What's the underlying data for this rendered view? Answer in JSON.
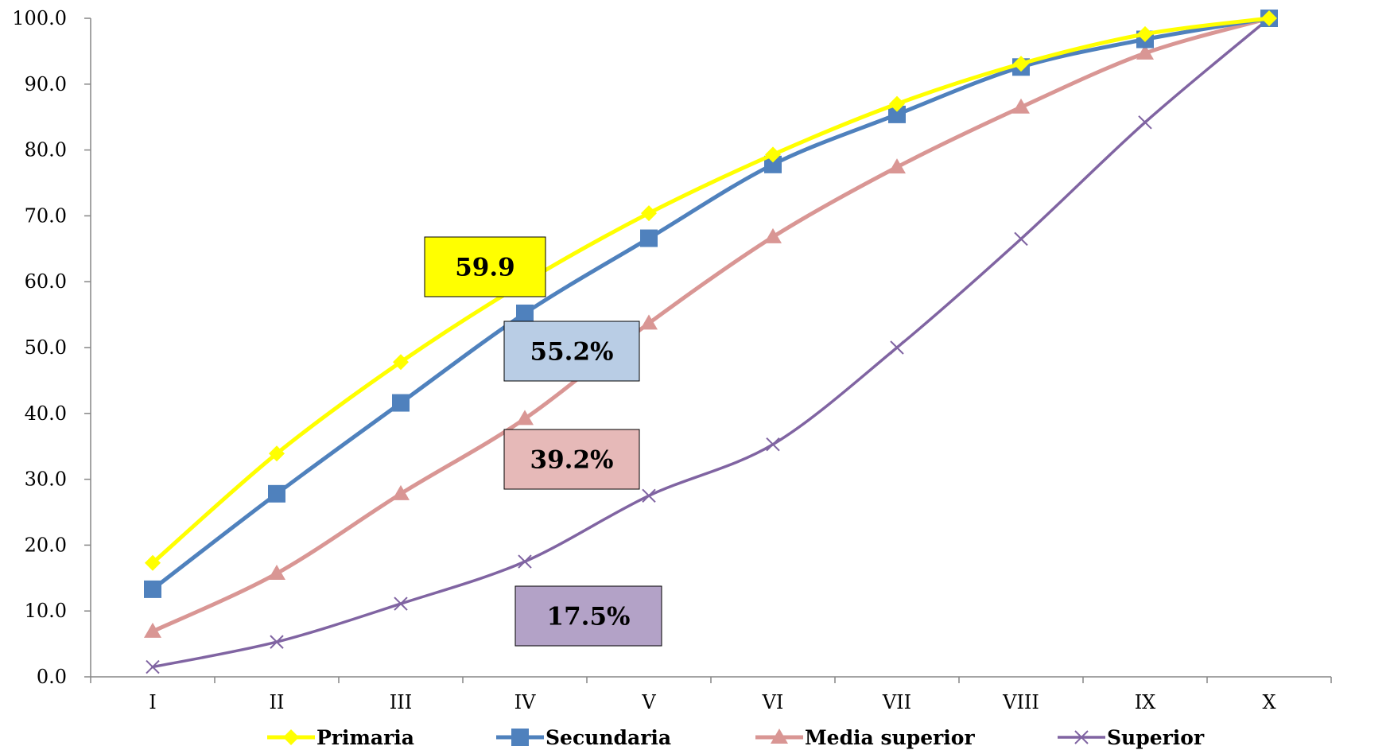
{
  "chart_data": {
    "type": "line",
    "categories": [
      "I",
      "II",
      "III",
      "IV",
      "V",
      "VI",
      "VII",
      "VIII",
      "IX",
      "X"
    ],
    "ylim": [
      0,
      100
    ],
    "yticks": [
      "0.0",
      "10.0",
      "20.0",
      "30.0",
      "40.0",
      "50.0",
      "60.0",
      "70.0",
      "80.0",
      "90.0",
      "100.0"
    ],
    "grid": false,
    "legend_position": "bottom",
    "series": [
      {
        "name": "Primaria",
        "color": "#FFFF00",
        "marker": "diamond",
        "values": [
          17.3,
          33.9,
          47.8,
          59.9,
          70.4,
          79.3,
          87.0,
          93.1,
          97.6,
          100.0
        ]
      },
      {
        "name": "Secundaria",
        "color": "#4F81BD",
        "marker": "square",
        "values": [
          13.3,
          27.8,
          41.6,
          55.2,
          66.6,
          77.8,
          85.4,
          92.6,
          96.8,
          100.0
        ]
      },
      {
        "name": "Media superior",
        "color": "#D99694",
        "marker": "triangle",
        "values": [
          6.9,
          15.7,
          27.8,
          39.2,
          53.7,
          66.8,
          77.4,
          86.5,
          94.7,
          100.0
        ]
      },
      {
        "name": "Superior",
        "color": "#8064A2",
        "marker": "x",
        "values": [
          1.5,
          5.3,
          11.1,
          17.5,
          27.5,
          35.3,
          50.0,
          66.5,
          84.2,
          100.0
        ]
      }
    ],
    "annotations": [
      {
        "text": "59.9",
        "series": "Primaria",
        "category": "IV",
        "fill": "#FFFF00"
      },
      {
        "text": "55.2%",
        "series": "Secundaria",
        "category": "IV",
        "fill": "#B9CDE5"
      },
      {
        "text": "39.2%",
        "series": "Media superior",
        "category": "IV",
        "fill": "#E6B9B8"
      },
      {
        "text": "17.5%",
        "series": "Superior",
        "category": "IV",
        "fill": "#B3A2C7"
      }
    ]
  }
}
